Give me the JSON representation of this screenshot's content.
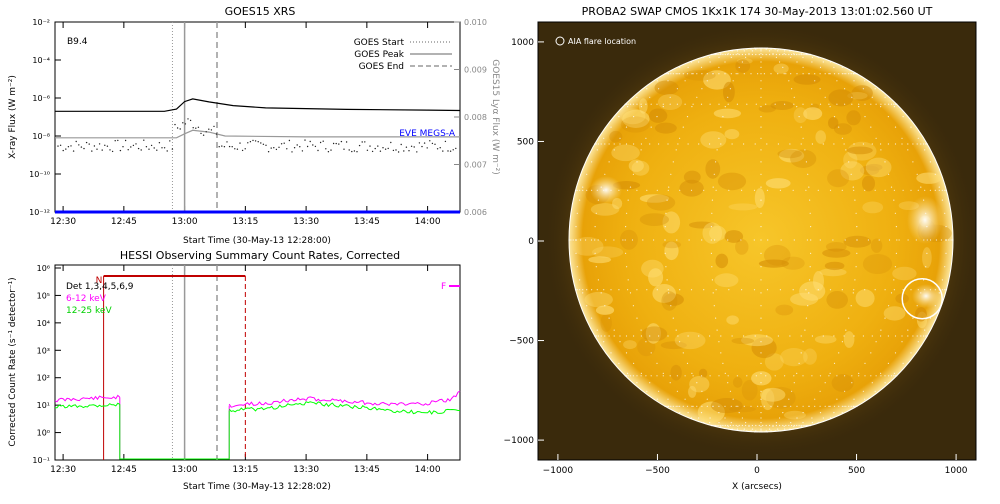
{
  "chart_data": [
    {
      "type": "line",
      "title": "GOES15 XRS",
      "xlabel": "Start Time (30-May-13 12:28:00)",
      "ylabel": "X-ray Flux (W m⁻²)",
      "ylabel_right": "GOES15 Lyα Flux (W m⁻²)",
      "y_scale": "log",
      "ylim": [
        1e-12,
        0.01
      ],
      "ylim_right": [
        0.006,
        0.01
      ],
      "x_ticks": [
        "12:30",
        "12:45",
        "13:00",
        "13:15",
        "13:30",
        "13:45",
        "14:00"
      ],
      "y_ticks": [
        "10⁻²",
        "10⁻⁴",
        "10⁻⁶",
        "10⁻⁸",
        "10⁻¹⁰",
        "10⁻¹²"
      ],
      "y_ticks_right": [
        "0.010",
        "0.009",
        "0.008",
        "0.007",
        "0.006"
      ],
      "annotation": "B9.4",
      "legend": [
        {
          "name": "GOES Start",
          "style": "dotted",
          "color": "#999999"
        },
        {
          "name": "GOES Peak",
          "style": "solid",
          "color": "#999999"
        },
        {
          "name": "GOES End",
          "style": "dashed",
          "color": "#999999"
        }
      ],
      "eve_label": "EVE MEGS-A",
      "event_times": {
        "start": "12:57",
        "peak": "13:00",
        "end": "13:08"
      },
      "series": [
        {
          "color": "#000000",
          "x": [
            "12:28",
            "12:55",
            "12:58",
            "13:00",
            "13:02",
            "13:06",
            "13:12",
            "13:20",
            "13:40",
            "14:00",
            "14:08"
          ],
          "values": [
            2e-07,
            2e-07,
            2.6e-07,
            6.5e-07,
            9e-07,
            6.2e-07,
            4e-07,
            3e-07,
            2.5e-07,
            2.3e-07,
            2.2e-07
          ]
        },
        {
          "color": "#999999",
          "x": [
            "12:28",
            "12:58",
            "13:00",
            "13:02",
            "13:06",
            "13:10",
            "13:30",
            "14:08"
          ],
          "values": [
            8e-09,
            8e-09,
            1.3e-08,
            2e-08,
            1.6e-08,
            1e-08,
            9e-09,
            9e-09
          ]
        },
        {
          "color": "#0000ff",
          "x": [
            "12:28",
            "14:08"
          ],
          "values": [
            1e-12,
            1e-12
          ]
        }
      ]
    },
    {
      "type": "line",
      "title": "HESSI Observing Summary Count Rates, Corrected",
      "xlabel": "Start Time (30-May-13 12:28:02)",
      "ylabel": "Corrected Count Rate (s⁻¹ detector⁻¹)",
      "y_scale": "log",
      "ylim": [
        0.1,
        1000000.0
      ],
      "x_ticks": [
        "12:30",
        "12:45",
        "13:00",
        "13:15",
        "13:30",
        "13:45",
        "14:00"
      ],
      "y_ticks": [
        "10⁶",
        "10⁵",
        "10⁴",
        "10³",
        "10²",
        "10¹",
        "10⁰",
        "10⁻¹"
      ],
      "legend_title": "Det 1,3,4,5,6,9",
      "night_marker": "N",
      "flare_marker": "F",
      "night_interval": [
        "12:40",
        "13:15"
      ],
      "event_times": {
        "start": "12:57",
        "peak": "13:00",
        "end": "13:08"
      },
      "series": [
        {
          "name": "6-12 keV",
          "color": "#ff00ff",
          "x": [
            "12:28",
            "12:35",
            "12:44",
            "13:11",
            "13:20",
            "13:30",
            "13:40",
            "13:50",
            "14:00",
            "14:06",
            "14:08"
          ],
          "values": [
            14,
            16,
            18,
            9,
            11,
            16,
            13,
            10,
            11,
            15,
            30
          ]
        },
        {
          "name": "12-25 keV",
          "color": "#00ff00",
          "x": [
            "12:28",
            "12:35",
            "12:44",
            "13:11",
            "13:20",
            "13:30",
            "13:40",
            "13:50",
            "14:00",
            "14:08"
          ],
          "values": [
            8,
            9,
            10,
            6,
            7,
            11,
            9,
            6,
            5,
            6
          ]
        }
      ]
    },
    {
      "type": "image",
      "title": "PROBA2 SWAP CMOS 1Kx1K 174 30-May-2013 13:01:02.560 UT",
      "xlabel": "X (arcsecs)",
      "x_ticks": [
        "−1000",
        "−500",
        "0",
        "500",
        "1000"
      ],
      "y_ticks": [
        "1000",
        "500",
        "0",
        "−500",
        "−1000"
      ],
      "annotation": "AIA flare location",
      "flare_location": [
        830,
        -290
      ],
      "xlim": [
        -1100,
        1100
      ],
      "ylim": [
        -1100,
        1100
      ]
    }
  ]
}
